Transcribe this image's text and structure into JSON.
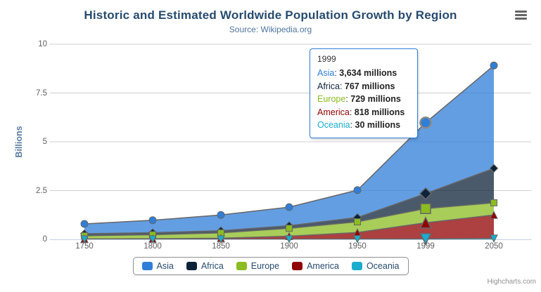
{
  "chart": {
    "title": "Historic and Estimated Worldwide Population Growth by Region",
    "subtitle": "Source: Wikipedia.org",
    "credits": "Highcharts.com",
    "context_menu_icon": "hamburger-icon"
  },
  "chart_data": {
    "type": "area",
    "stacking": "normal",
    "stack_order": "first series on top",
    "title": "Historic and Estimated Worldwide Population Growth by Region",
    "subtitle": "Source: Wikipedia.org",
    "categories": [
      "1750",
      "1800",
      "1850",
      "1900",
      "1950",
      "1999",
      "2050"
    ],
    "xlabel": "",
    "ylabel": "Billions",
    "unit": "millions",
    "ylim": [
      0,
      10
    ],
    "yticks": [
      0,
      2.5,
      5,
      7.5,
      10
    ],
    "ytick_labels": [
      "0",
      "2.5",
      "5",
      "7.5",
      "10"
    ],
    "grid": true,
    "legend_position": "bottom-center",
    "line_color": "#666666",
    "fill_opacity": 0.75,
    "grid_color": "#cfcfcf",
    "axis_line_color": "#c0d0e0",
    "series": [
      {
        "name": "Asia",
        "color": "#2f7ed8",
        "marker": "circle",
        "values": [
          502,
          635,
          809,
          947,
          1402,
          3634,
          5268
        ]
      },
      {
        "name": "Africa",
        "color": "#0d233a",
        "marker": "diamond",
        "values": [
          106,
          107,
          111,
          133,
          221,
          767,
          1766
        ]
      },
      {
        "name": "Europe",
        "color": "#8bbc21",
        "marker": "square",
        "values": [
          163,
          203,
          276,
          408,
          547,
          729,
          628
        ]
      },
      {
        "name": "America",
        "color": "#910000",
        "marker": "triangle",
        "values": [
          18,
          31,
          54,
          156,
          339,
          818,
          1201
        ]
      },
      {
        "name": "Oceania",
        "color": "#1aadce",
        "marker": "triangle-down",
        "values": [
          2,
          2,
          2,
          6,
          13,
          30,
          46
        ]
      }
    ]
  },
  "tooltip": {
    "category": "1999",
    "hover_category_index": 5,
    "rows": [
      {
        "name": "Asia",
        "color": "#2f7ed8",
        "value": "3,634 millions"
      },
      {
        "name": "Africa",
        "color": "#0d233a",
        "value": "767 millions"
      },
      {
        "name": "Europe",
        "color": "#8bbc21",
        "value": "729 millions"
      },
      {
        "name": "America",
        "color": "#910000",
        "value": "818 millions"
      },
      {
        "name": "Oceania",
        "color": "#1aadce",
        "value": "30 millions"
      }
    ]
  },
  "legend": {
    "items": [
      "Asia",
      "Africa",
      "Europe",
      "America",
      "Oceania"
    ]
  }
}
